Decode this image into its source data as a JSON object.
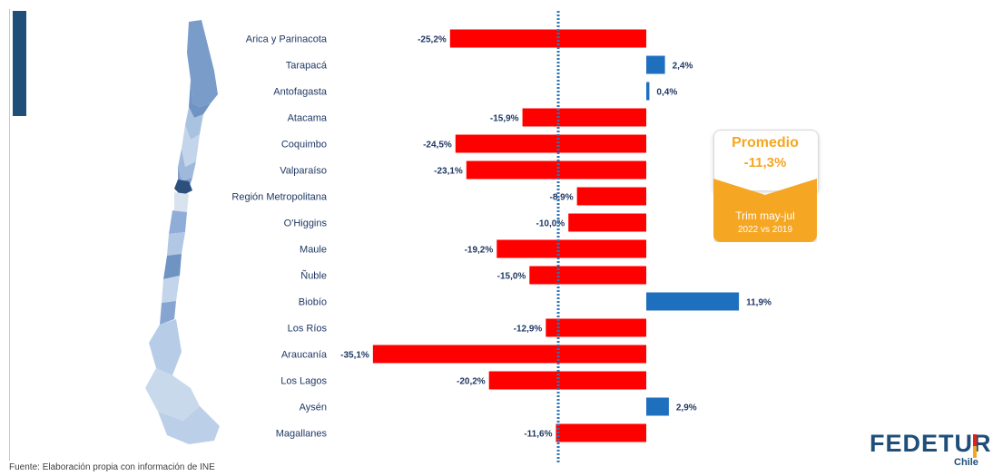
{
  "chart_data": {
    "type": "bar",
    "orientation": "horizontal",
    "categories": [
      "Arica y Parinacota",
      "Tarapacá",
      "Antofagasta",
      "Atacama",
      "Coquimbo",
      "Valparaíso",
      "Región Metropolitana",
      "O'Higgins",
      "Maule",
      "Ñuble",
      "Biobío",
      "Los Ríos",
      "Araucanía",
      "Los Lagos",
      "Aysén",
      "Magallanes"
    ],
    "values": [
      -25.2,
      2.4,
      0.4,
      -15.9,
      -24.5,
      -23.1,
      -8.9,
      -10.0,
      -19.2,
      -15.0,
      11.9,
      -12.9,
      -35.1,
      -20.2,
      2.9,
      -11.6
    ],
    "value_labels": [
      "-25,2%",
      "2,4%",
      "0,4%",
      "-15,9%",
      "-24,5%",
      "-23,1%",
      "-8,9%",
      "-10,0%",
      "-19,2%",
      "-15,0%",
      "11,9%",
      "-12,9%",
      "-35,1%",
      "-20,2%",
      "2,9%",
      "-11,6%"
    ],
    "reference_line": {
      "value": -11.3,
      "style": "dotted"
    },
    "xlim": [
      -35.1,
      11.9
    ],
    "grid": false,
    "colors": {
      "negative": "#ff0000",
      "positive": "#1f6fbf",
      "reference": "#2e75b6"
    }
  },
  "callout": {
    "title": "Promedio",
    "value": "-11,3%",
    "period": "Trim may-jul",
    "comparison": "2022 vs 2019"
  },
  "logo": {
    "brand": "FEDETUR",
    "country": "Chile"
  },
  "source": "Fuente: Elaboración propia con información de INE",
  "map": {
    "icon": "chile-regions-map-icon"
  }
}
